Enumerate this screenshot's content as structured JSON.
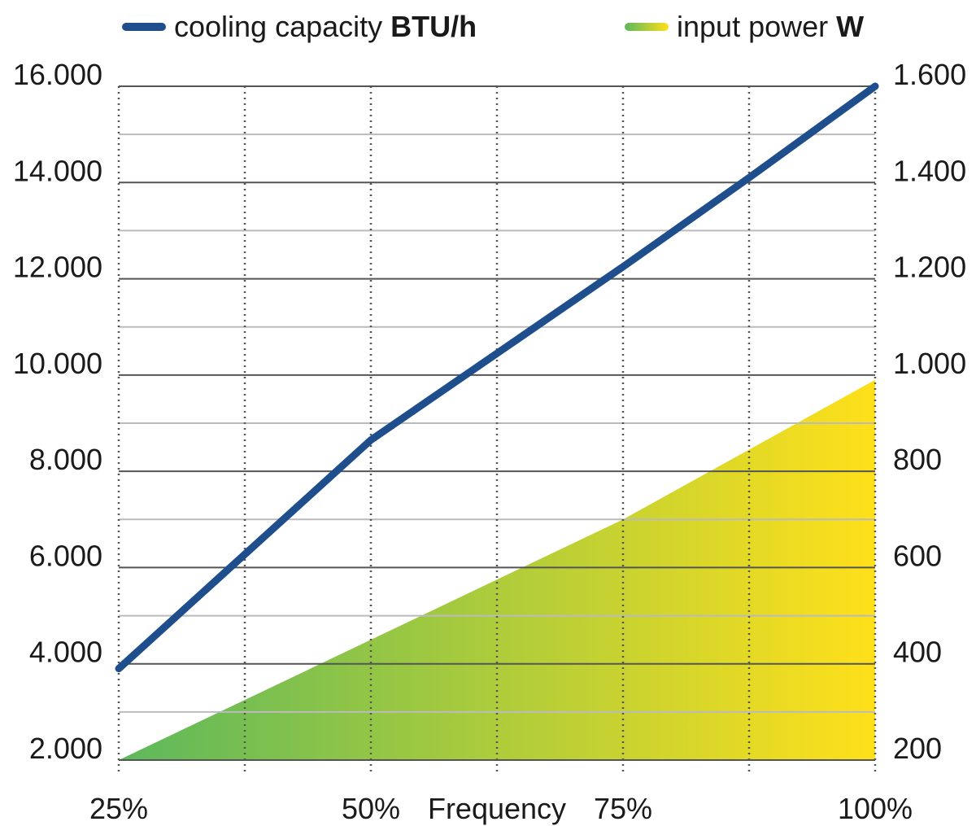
{
  "legend": {
    "capacity_label": "cooling capacity",
    "capacity_unit": "BTU/h",
    "power_label": "input power",
    "power_unit": "W"
  },
  "colors": {
    "capacity_line": "#1f4e8c",
    "power_start": "#5cb85c",
    "power_end": "#ffe01a",
    "grid_major": "#555555",
    "grid_minor": "#bbbbbb",
    "grid_vertical": "#555555"
  },
  "chart_data": {
    "type": "line",
    "xlabel": "Frequency",
    "x_ticks": [
      "25%",
      "50%",
      "75%",
      "100%"
    ],
    "x_range": [
      25,
      100
    ],
    "x_vertical_grid": [
      25,
      37.5,
      50,
      62.5,
      75,
      87.5,
      100
    ],
    "left_axis": {
      "range": [
        2000,
        16000
      ],
      "ticks": [
        "2.000",
        "4.000",
        "6.000",
        "8.000",
        "10.000",
        "12.000",
        "14.000",
        "16.000"
      ],
      "tick_values": [
        2000,
        4000,
        6000,
        8000,
        10000,
        12000,
        14000,
        16000
      ]
    },
    "right_axis": {
      "range": [
        200,
        1600
      ],
      "ticks": [
        "200",
        "400",
        "600",
        "800",
        "1.000",
        "1.200",
        "1.400",
        "1.600"
      ],
      "tick_values": [
        200,
        400,
        600,
        800,
        1000,
        1200,
        1400,
        1600
      ]
    },
    "grid_minor_step_left": 1000,
    "series": [
      {
        "name": "cooling capacity",
        "unit": "BTU/h",
        "axis": "left",
        "kind": "line",
        "points": [
          [
            25,
            3900
          ],
          [
            50,
            8650
          ],
          [
            75,
            12250
          ],
          [
            87.5,
            14100
          ],
          [
            100,
            16000
          ]
        ]
      },
      {
        "name": "input power",
        "unit": "W",
        "axis": "right",
        "kind": "area",
        "points": [
          [
            25,
            200
          ],
          [
            50,
            450
          ],
          [
            75,
            700
          ],
          [
            100,
            990
          ]
        ]
      }
    ]
  }
}
